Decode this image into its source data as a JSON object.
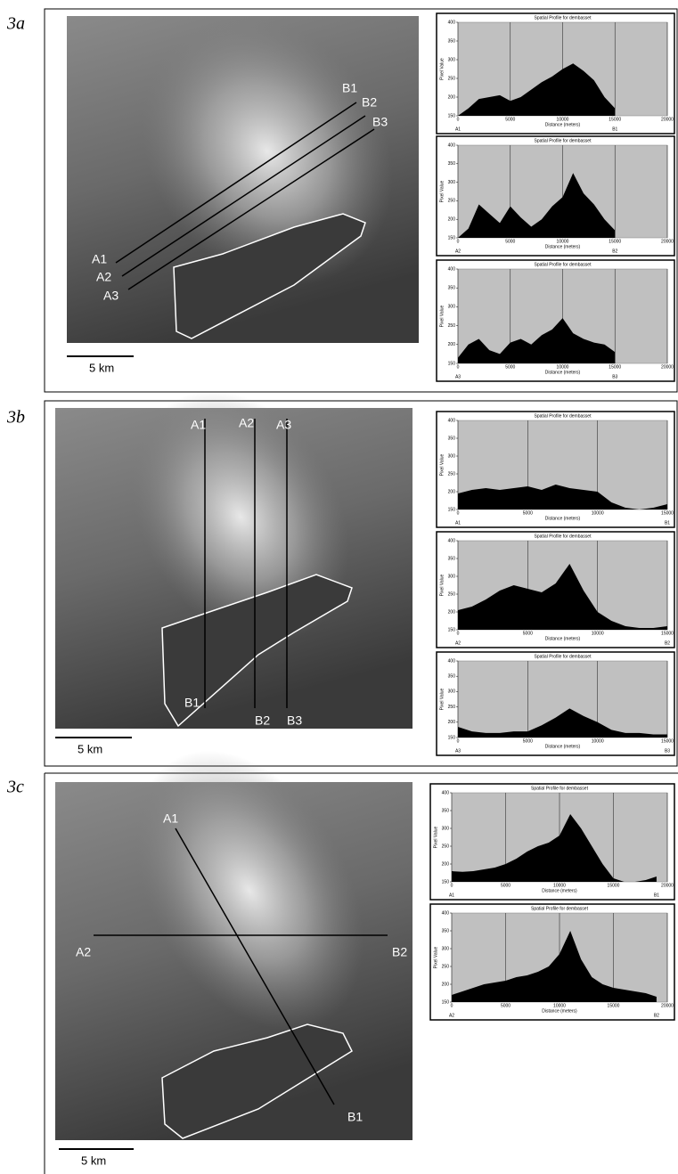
{
  "panels": [
    {
      "label": "3a",
      "scale_bar": "5 km",
      "map_labels": [
        "A1",
        "A2",
        "A3",
        "B1",
        "B2",
        "B3"
      ],
      "profiles": [
        {
          "title": "Spatial Profile for dembasset",
          "y_axis_label": "Pixel Value",
          "x_axis_label": "Distance (meters)",
          "start_label": "A1",
          "end_label": "B1",
          "xlim": [
            0,
            20000
          ],
          "ylim": [
            150,
            400
          ],
          "xticks": [
            0,
            5000,
            10000,
            15000,
            20000
          ],
          "yticks": [
            150,
            200,
            250,
            300,
            350,
            400
          ],
          "x": [
            0,
            1000,
            2000,
            3000,
            4000,
            5000,
            6000,
            7000,
            8000,
            9000,
            10000,
            11000,
            12000,
            13000,
            14000,
            15000
          ],
          "values": [
            150,
            170,
            195,
            200,
            205,
            190,
            200,
            220,
            240,
            255,
            275,
            290,
            270,
            245,
            200,
            170
          ]
        },
        {
          "title": "Spatial Profile for dembasset",
          "y_axis_label": "Pixel Value",
          "x_axis_label": "Distance (meters)",
          "start_label": "A2",
          "end_label": "B2",
          "xlim": [
            0,
            20000
          ],
          "ylim": [
            150,
            400
          ],
          "xticks": [
            0,
            5000,
            10000,
            15000,
            20000
          ],
          "yticks": [
            150,
            200,
            250,
            300,
            350,
            400
          ],
          "x": [
            0,
            1000,
            2000,
            3000,
            4000,
            5000,
            6000,
            7000,
            8000,
            9000,
            10000,
            11000,
            12000,
            13000,
            14000,
            15000
          ],
          "values": [
            150,
            175,
            240,
            215,
            190,
            235,
            205,
            180,
            200,
            235,
            260,
            325,
            270,
            240,
            200,
            170
          ]
        },
        {
          "title": "Spatial Profile for dembasset",
          "y_axis_label": "Pixel Value",
          "x_axis_label": "Distance (meters)",
          "start_label": "A3",
          "end_label": "B3",
          "xlim": [
            0,
            20000
          ],
          "ylim": [
            150,
            400
          ],
          "xticks": [
            0,
            5000,
            10000,
            15000,
            20000
          ],
          "yticks": [
            150,
            200,
            250,
            300,
            350,
            400
          ],
          "x": [
            0,
            1000,
            2000,
            3000,
            4000,
            5000,
            6000,
            7000,
            8000,
            9000,
            10000,
            11000,
            12000,
            13000,
            14000,
            15000
          ],
          "values": [
            165,
            200,
            215,
            185,
            175,
            205,
            215,
            200,
            225,
            240,
            270,
            230,
            215,
            205,
            200,
            180
          ]
        }
      ]
    },
    {
      "label": "3b",
      "scale_bar": "5 km",
      "map_labels": [
        "A1",
        "A2",
        "A3",
        "B1",
        "B2",
        "B3"
      ],
      "profiles": [
        {
          "title": "Spatial Profile for dembasset",
          "y_axis_label": "Pixel Value",
          "x_axis_label": "Distance (meters)",
          "start_label": "A1",
          "end_label": "B1",
          "xlim": [
            0,
            15000
          ],
          "ylim": [
            150,
            400
          ],
          "xticks": [
            0,
            5000,
            10000,
            15000
          ],
          "yticks": [
            150,
            200,
            250,
            300,
            350,
            400
          ],
          "x": [
            0,
            1000,
            2000,
            3000,
            4000,
            5000,
            6000,
            7000,
            8000,
            9000,
            10000,
            11000,
            12000,
            13000,
            14000,
            15000
          ],
          "values": [
            195,
            205,
            210,
            205,
            210,
            215,
            205,
            220,
            210,
            205,
            200,
            170,
            155,
            150,
            155,
            165
          ]
        },
        {
          "title": "Spatial Profile for dembasset",
          "y_axis_label": "Pixel Value",
          "x_axis_label": "Distance (meters)",
          "start_label": "A2",
          "end_label": "B2",
          "xlim": [
            0,
            15000
          ],
          "ylim": [
            150,
            400
          ],
          "xticks": [
            0,
            5000,
            10000,
            15000
          ],
          "yticks": [
            150,
            200,
            250,
            300,
            350,
            400
          ],
          "x": [
            0,
            1000,
            2000,
            3000,
            4000,
            5000,
            6000,
            7000,
            8000,
            9000,
            10000,
            11000,
            12000,
            13000,
            14000,
            15000
          ],
          "values": [
            205,
            215,
            235,
            260,
            275,
            265,
            255,
            280,
            335,
            260,
            200,
            175,
            160,
            155,
            155,
            160
          ]
        },
        {
          "title": "Spatial Profile for dembasset",
          "y_axis_label": "Pixel Value",
          "x_axis_label": "Distance (meters)",
          "start_label": "A3",
          "end_label": "B3",
          "xlim": [
            0,
            15000
          ],
          "ylim": [
            150,
            400
          ],
          "xticks": [
            0,
            5000,
            10000,
            15000
          ],
          "yticks": [
            150,
            200,
            250,
            300,
            350,
            400
          ],
          "x": [
            0,
            1000,
            2000,
            3000,
            4000,
            5000,
            6000,
            7000,
            8000,
            9000,
            10000,
            11000,
            12000,
            13000,
            14000,
            15000
          ],
          "values": [
            185,
            170,
            165,
            165,
            170,
            170,
            190,
            215,
            245,
            220,
            200,
            175,
            165,
            165,
            160,
            160
          ]
        }
      ]
    },
    {
      "label": "3c",
      "scale_bar": "5 km",
      "map_labels": [
        "A1",
        "A2",
        "B1",
        "B2"
      ],
      "profiles": [
        {
          "title": "Spatial Profile for dembasset",
          "y_axis_label": "Pixel Value",
          "x_axis_label": "Distance (meters)",
          "start_label": "A1",
          "end_label": "B1",
          "xlim": [
            0,
            20000
          ],
          "ylim": [
            150,
            400
          ],
          "xticks": [
            0,
            5000,
            10000,
            15000,
            20000
          ],
          "yticks": [
            150,
            200,
            250,
            300,
            350,
            400
          ],
          "x": [
            0,
            1000,
            2000,
            3000,
            4000,
            5000,
            6000,
            7000,
            8000,
            9000,
            10000,
            11000,
            12000,
            13000,
            14000,
            15000,
            16000,
            17000,
            18000,
            19000
          ],
          "values": [
            180,
            178,
            180,
            185,
            190,
            200,
            215,
            235,
            250,
            260,
            280,
            340,
            300,
            250,
            200,
            160,
            150,
            150,
            155,
            165
          ]
        },
        {
          "title": "Spatial Profile for dembasset",
          "y_axis_label": "Pixel Value",
          "x_axis_label": "Distance (meters)",
          "start_label": "A2",
          "end_label": "B2",
          "xlim": [
            0,
            20000
          ],
          "ylim": [
            150,
            400
          ],
          "xticks": [
            0,
            5000,
            10000,
            15000,
            20000
          ],
          "yticks": [
            150,
            200,
            250,
            300,
            350,
            400
          ],
          "x": [
            0,
            1000,
            2000,
            3000,
            4000,
            5000,
            6000,
            7000,
            8000,
            9000,
            10000,
            11000,
            12000,
            13000,
            14000,
            15000,
            16000,
            17000,
            18000,
            19000
          ],
          "values": [
            170,
            180,
            190,
            200,
            205,
            210,
            220,
            225,
            235,
            250,
            285,
            350,
            270,
            220,
            200,
            190,
            185,
            180,
            175,
            165
          ]
        }
      ]
    }
  ]
}
